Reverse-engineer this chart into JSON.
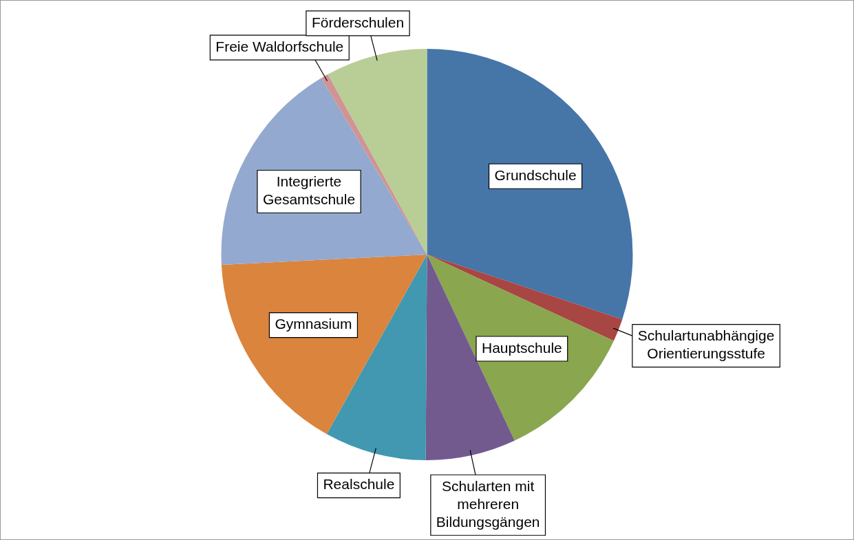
{
  "chart_data": {
    "type": "pie",
    "categories": [
      "Grundschule",
      "Schulartunabhängige Orientierungsstufe",
      "Hauptschule",
      "Schularten mit mehreren Bildungsgängen",
      "Realschule",
      "Gymnasium",
      "Integrierte Gesamtschule",
      "Freie Waldorfschule",
      "Förderschulen"
    ],
    "values": [
      30.1,
      1.8,
      11.1,
      7.1,
      8.0,
      16.1,
      17.2,
      0.6,
      8.0
    ],
    "colors": [
      "#4675a8",
      "#a84644",
      "#8aa64e",
      "#725a8f",
      "#4198b0",
      "#db843d",
      "#93a9cf",
      "#d09494",
      "#b9cd96"
    ]
  }
}
